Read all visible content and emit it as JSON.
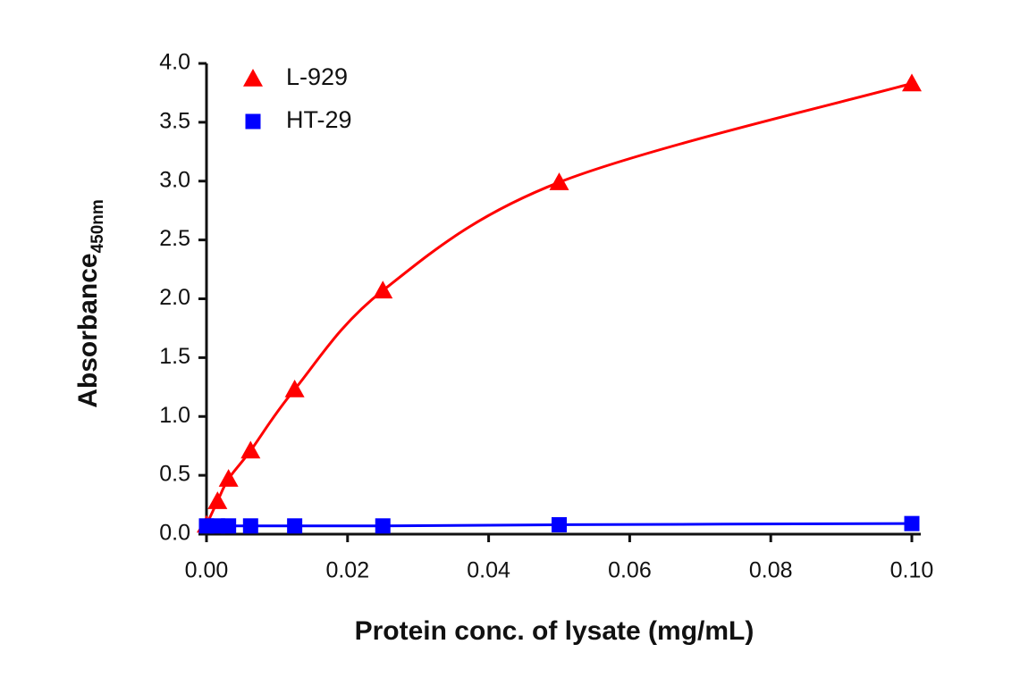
{
  "chart_data": {
    "type": "scatter",
    "x_label": "Protein conc. of lysate (mg/mL)",
    "y_label": "Absorbance",
    "y_label_subscript": "450nm",
    "xlim": [
      0,
      0.1
    ],
    "ylim": [
      0,
      4
    ],
    "xticks": [
      {
        "value": 0,
        "label": "0.00"
      },
      0.02,
      0.04,
      0.06,
      0.08,
      {
        "value": 0.1,
        "label": "0.10"
      }
    ],
    "yticks": [
      {
        "value": 0,
        "label": "0.0"
      },
      0.5,
      {
        "value": 1,
        "label": "1.0"
      },
      1.5,
      {
        "value": 2,
        "label": "2.0"
      },
      2.5,
      {
        "value": 3,
        "label": "3.0"
      },
      3.5,
      {
        "value": 4,
        "label": "4.0"
      }
    ],
    "legend": "top-left",
    "series": [
      {
        "name": "L-929",
        "color": "#ff0000",
        "marker": "triangle",
        "x": [
          0,
          0.0015625,
          0.003125,
          0.00625,
          0.0125,
          0.025,
          0.05,
          0.1
        ],
        "values": [
          0.08,
          0.28,
          0.47,
          0.71,
          1.23,
          2.07,
          2.99,
          3.83
        ]
      },
      {
        "name": "HT-29",
        "color": "#0000ff",
        "marker": "square",
        "x": [
          0,
          0.0015625,
          0.003125,
          0.00625,
          0.0125,
          0.025,
          0.05,
          0.1
        ],
        "values": [
          0.07,
          0.07,
          0.07,
          0.07,
          0.07,
          0.07,
          0.08,
          0.09
        ]
      }
    ]
  }
}
